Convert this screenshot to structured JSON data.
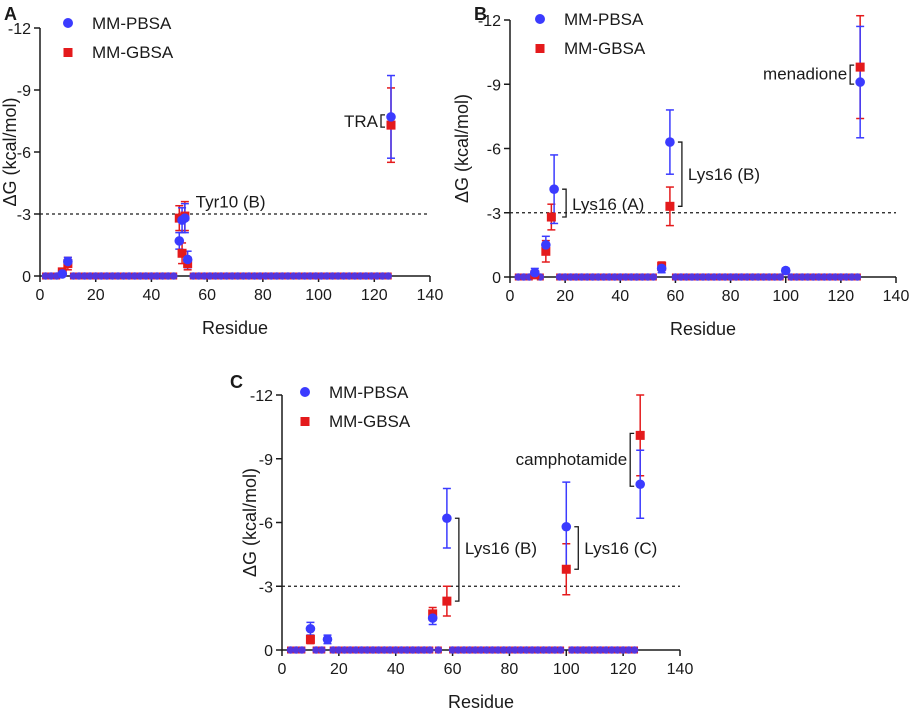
{
  "chart_data": [
    {
      "type": "scatter",
      "panel": "A",
      "xlabel": "Residue",
      "ylabel": "ΔG (kcal/mol)",
      "xlim": [
        0,
        140
      ],
      "ylim": [
        -12,
        0
      ],
      "xticks": [
        "0",
        "20",
        "40",
        "60",
        "80",
        "100",
        "120",
        "140"
      ],
      "yticks": [
        "-12",
        "-9",
        "-6",
        "-3",
        "0"
      ],
      "threshold": -3,
      "legend": [
        "MM-PBSA",
        "MM-GBSA"
      ],
      "series": [
        {
          "name": "MM-PBSA",
          "color": "#3b3bff",
          "points": [
            [
              8,
              -0.1,
              0.1
            ],
            [
              10,
              -0.7,
              0.2
            ],
            [
              50,
              -1.7,
              0.4
            ],
            [
              51,
              -2.7,
              0.6
            ],
            [
              52,
              -2.8,
              0.7
            ],
            [
              53,
              -0.8,
              0.4
            ],
            [
              126,
              -7.7,
              2.0
            ]
          ]
        },
        {
          "name": "MM-GBSA",
          "color": "#e41a1c",
          "points": [
            [
              8,
              -0.2,
              0.1
            ],
            [
              10,
              -0.6,
              0.3
            ],
            [
              50,
              -2.8,
              0.6
            ],
            [
              51,
              -1.1,
              0.5
            ],
            [
              52,
              -2.9,
              0.7
            ],
            [
              53,
              -0.6,
              0.3
            ],
            [
              126,
              -7.3,
              1.8
            ]
          ]
        }
      ],
      "baseline_residues": [
        2,
        4,
        6,
        12,
        14,
        16,
        18,
        20,
        22,
        24,
        26,
        28,
        30,
        32,
        34,
        36,
        38,
        40,
        42,
        44,
        46,
        48,
        55,
        57,
        59,
        61,
        63,
        65,
        67,
        69,
        71,
        73,
        75,
        77,
        79,
        81,
        83,
        85,
        87,
        89,
        91,
        93,
        95,
        97,
        99,
        101,
        103,
        105,
        107,
        109,
        111,
        113,
        115,
        117,
        119,
        121,
        123,
        125
      ],
      "annotations": [
        {
          "text": "TRA",
          "x": 126,
          "y": -7.5,
          "side": "left",
          "bracket": [
            -7.3,
            -7.7
          ]
        },
        {
          "text": "Tyr10 (B)",
          "x": 53,
          "y": -3.6,
          "side": "right"
        }
      ]
    },
    {
      "type": "scatter",
      "panel": "B",
      "xlabel": "Residue",
      "ylabel": "ΔG (kcal/mol)",
      "xlim": [
        0,
        140
      ],
      "ylim": [
        -12,
        0
      ],
      "xticks": [
        "0",
        "20",
        "40",
        "60",
        "80",
        "100",
        "120",
        "140"
      ],
      "yticks": [
        "-12",
        "-9",
        "-6",
        "-3",
        "0"
      ],
      "threshold": -3,
      "legend": [
        "MM-PBSA",
        "MM-GBSA"
      ],
      "series": [
        {
          "name": "MM-PBSA",
          "color": "#3b3bff",
          "points": [
            [
              9,
              -0.2,
              0.2
            ],
            [
              13,
              -1.5,
              0.4
            ],
            [
              16,
              -4.1,
              1.6
            ],
            [
              55,
              -0.4,
              0.2
            ],
            [
              58,
              -6.3,
              1.5
            ],
            [
              100,
              -0.3,
              0.1
            ],
            [
              127,
              -9.1,
              2.6
            ]
          ]
        },
        {
          "name": "MM-GBSA",
          "color": "#e41a1c",
          "points": [
            [
              9,
              -0.1,
              0.2
            ],
            [
              13,
              -1.2,
              0.5
            ],
            [
              15,
              -2.8,
              0.6
            ],
            [
              55,
              -0.5,
              0.2
            ],
            [
              58,
              -3.3,
              0.9
            ],
            [
              127,
              -9.8,
              2.4
            ]
          ]
        }
      ],
      "baseline_residues": [
        3,
        5,
        7,
        11,
        18,
        20,
        22,
        24,
        26,
        28,
        30,
        32,
        34,
        36,
        38,
        40,
        42,
        44,
        46,
        48,
        50,
        52,
        60,
        62,
        64,
        66,
        68,
        70,
        72,
        74,
        76,
        78,
        80,
        82,
        84,
        86,
        88,
        90,
        92,
        94,
        96,
        98,
        102,
        104,
        106,
        108,
        110,
        112,
        114,
        116,
        118,
        120,
        122,
        124,
        126
      ],
      "annotations": [
        {
          "text": "menadione",
          "x": 127,
          "y": -9.5,
          "side": "left",
          "bracket": [
            -9.8,
            -9.1
          ]
        },
        {
          "text": "Lys16 (A)",
          "x": 16,
          "y": -3.4,
          "side": "right",
          "bracket": [
            -4.1,
            -2.8
          ]
        },
        {
          "text": "Lys16 (B)",
          "x": 58,
          "y": -4.8,
          "side": "right",
          "bracket": [
            -6.3,
            -3.3
          ]
        }
      ]
    },
    {
      "type": "scatter",
      "panel": "C",
      "xlabel": "Residue",
      "ylabel": "ΔG (kcal/mol)",
      "xlim": [
        0,
        140
      ],
      "ylim": [
        -12,
        0
      ],
      "xticks": [
        "0",
        "20",
        "40",
        "60",
        "80",
        "100",
        "120",
        "140"
      ],
      "yticks": [
        "-12",
        "-9",
        "-6",
        "-3",
        "0"
      ],
      "threshold": -3,
      "legend": [
        "MM-PBSA",
        "MM-GBSA"
      ],
      "series": [
        {
          "name": "MM-PBSA",
          "color": "#3b3bff",
          "points": [
            [
              10,
              -1.0,
              0.3
            ],
            [
              16,
              -0.5,
              0.2
            ],
            [
              53,
              -1.5,
              0.3
            ],
            [
              58,
              -6.2,
              1.4
            ],
            [
              100,
              -5.8,
              2.1
            ],
            [
              126,
              -7.8,
              1.6
            ]
          ]
        },
        {
          "name": "MM-GBSA",
          "color": "#e41a1c",
          "points": [
            [
              10,
              -0.5,
              0.2
            ],
            [
              53,
              -1.7,
              0.3
            ],
            [
              58,
              -2.3,
              0.7
            ],
            [
              100,
              -3.8,
              1.2
            ],
            [
              126,
              -10.1,
              1.9
            ]
          ]
        }
      ],
      "baseline_residues": [
        3,
        5,
        7,
        12,
        14,
        18,
        20,
        22,
        24,
        26,
        28,
        30,
        32,
        34,
        36,
        38,
        40,
        42,
        44,
        46,
        48,
        50,
        52,
        55,
        60,
        62,
        64,
        66,
        68,
        70,
        72,
        74,
        76,
        78,
        80,
        82,
        84,
        86,
        88,
        90,
        92,
        94,
        96,
        98,
        102,
        104,
        106,
        108,
        110,
        112,
        114,
        116,
        118,
        120,
        122,
        124
      ],
      "annotations": [
        {
          "text": "camphotamide",
          "x": 126,
          "y": -9.0,
          "side": "left",
          "bracket": [
            -10.1,
            -7.8
          ]
        },
        {
          "text": "Lys16 (B)",
          "x": 58,
          "y": -4.8,
          "side": "right",
          "bracket": [
            -6.2,
            -2.3
          ]
        },
        {
          "text": "Lys16 (C)",
          "x": 100,
          "y": -4.8,
          "side": "right",
          "bracket": [
            -5.8,
            -3.8
          ]
        }
      ]
    }
  ]
}
